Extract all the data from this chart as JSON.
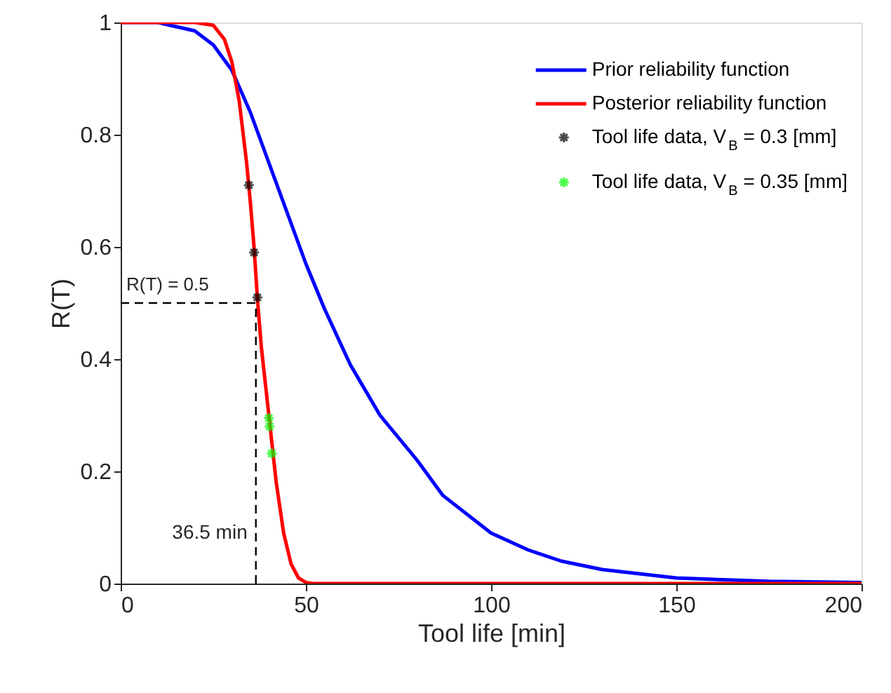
{
  "chart_data": {
    "type": "line",
    "xlabel": "Tool life [min]",
    "ylabel": "R(T)",
    "xlim": [
      0,
      200
    ],
    "ylim": [
      0,
      1
    ],
    "xticks": [
      0,
      50,
      100,
      150,
      200
    ],
    "yticks": [
      0,
      0.2,
      0.4,
      0.6,
      0.8,
      1
    ],
    "legend": "top right",
    "line_style": "solid",
    "series": [
      {
        "name": "Prior reliability function",
        "color": "#0000ff",
        "x": [
          0,
          10,
          20,
          25,
          30,
          35,
          40,
          45,
          50,
          55,
          62,
          70,
          75,
          80,
          87,
          100,
          110,
          119,
          130,
          150,
          175,
          200
        ],
        "values": [
          1,
          1,
          0.985,
          0.96,
          0.915,
          0.84,
          0.75,
          0.66,
          0.57,
          0.49,
          0.39,
          0.3,
          0.26,
          0.22,
          0.157,
          0.09,
          0.06,
          0.04,
          0.025,
          0.01,
          0.004,
          0.002
        ]
      },
      {
        "name": "Posterior reliability function",
        "color": "#ff0000",
        "x": [
          0,
          20,
          25,
          28,
          30,
          32,
          34,
          35,
          36,
          37,
          38,
          40,
          42,
          44,
          46,
          48,
          50,
          52,
          200
        ],
        "values": [
          1,
          1,
          0.995,
          0.97,
          0.93,
          0.86,
          0.75,
          0.68,
          0.6,
          0.5,
          0.42,
          0.3,
          0.18,
          0.09,
          0.035,
          0.01,
          0.002,
          0,
          0
        ]
      },
      {
        "name": "Tool life data, V$_{B}$ = 0.3 [mm]",
        "type": "scatter",
        "marker": "cross",
        "color": "#000000",
        "x": [
          34.6,
          36.0,
          36.9
        ],
        "values": [
          0.71,
          0.59,
          0.51
        ]
      },
      {
        "name": "Tool life data, V$_{B}$ = 0.35 [mm]",
        "type": "scatter",
        "marker": "cross",
        "color": "#00ff00",
        "x": [
          40.0,
          40.2,
          40.8
        ],
        "values": [
          0.295,
          0.28,
          0.232
        ]
      }
    ],
    "ref_lines": [
      {
        "axis": "y",
        "value": 0.5,
        "label": "R(T) = 0.5",
        "color": "#000000",
        "line_style": "dashed"
      },
      {
        "axis": "x",
        "value": 36.5,
        "label": "36.5 min",
        "color": "#000000",
        "line_style": "dashed"
      }
    ]
  }
}
